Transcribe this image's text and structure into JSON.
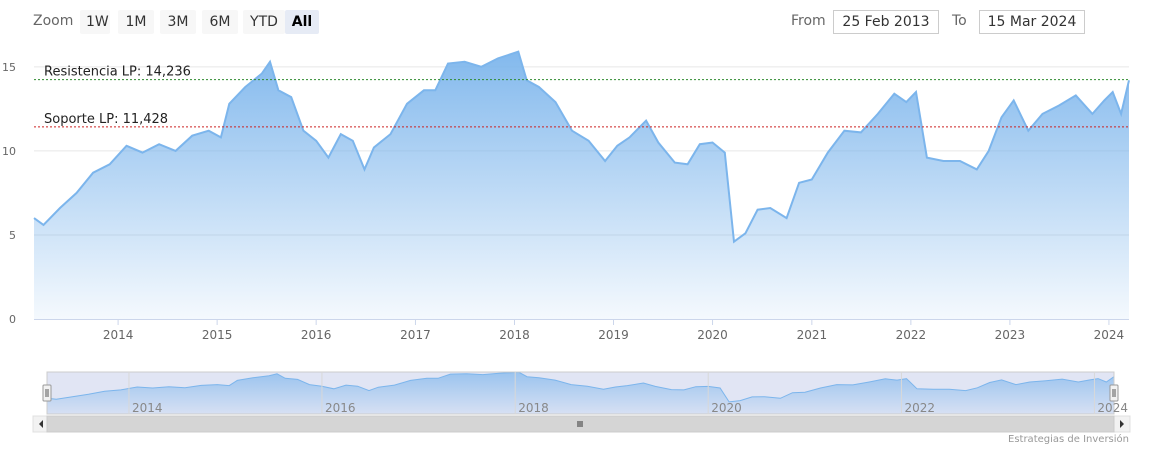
{
  "toolbar": {
    "zoom_label": "Zoom",
    "buttons": [
      "1W",
      "1M",
      "3M",
      "6M",
      "YTD",
      "All"
    ],
    "active": "All",
    "from_label": "From",
    "from_value": "25 Feb 2013",
    "to_label": "To",
    "to_value": "15 Mar 2024"
  },
  "colors": {
    "line": "#7cb5ec",
    "resistance": "#2e8b2e",
    "support": "#cc2222",
    "navigator_mask": "#cdd4ec"
  },
  "credits": "Estrategias de Inversión",
  "chart_data": {
    "type": "area",
    "ylim": [
      0,
      16
    ],
    "yticks": [
      "0",
      "5",
      "10",
      "15"
    ],
    "xlabels": [
      "2014",
      "2015",
      "2016",
      "2017",
      "2018",
      "2019",
      "2020",
      "2021",
      "2022",
      "2023",
      "2024"
    ],
    "navigator_labels": [
      "2014",
      "2016",
      "2018",
      "2020",
      "2022",
      "2024"
    ],
    "x_range": [
      "2013-02-25",
      "2024-03-15"
    ],
    "series": [
      {
        "values": [
          [
            "2013-02-25",
            6.0
          ],
          [
            "2013-04-01",
            5.6
          ],
          [
            "2013-06-01",
            6.6
          ],
          [
            "2013-08-01",
            7.5
          ],
          [
            "2013-10-01",
            8.7
          ],
          [
            "2013-12-01",
            9.2
          ],
          [
            "2014-02-01",
            10.3
          ],
          [
            "2014-04-01",
            9.9
          ],
          [
            "2014-06-01",
            10.4
          ],
          [
            "2014-08-01",
            10.0
          ],
          [
            "2014-10-01",
            10.9
          ],
          [
            "2014-12-01",
            11.2
          ],
          [
            "2015-01-15",
            10.8
          ],
          [
            "2015-02-15",
            12.8
          ],
          [
            "2015-04-15",
            13.8
          ],
          [
            "2015-06-15",
            14.6
          ],
          [
            "2015-07-15",
            15.3
          ],
          [
            "2015-08-15",
            13.6
          ],
          [
            "2015-10-01",
            13.2
          ],
          [
            "2015-11-15",
            11.2
          ],
          [
            "2016-01-01",
            10.6
          ],
          [
            "2016-02-15",
            9.6
          ],
          [
            "2016-04-01",
            11.0
          ],
          [
            "2016-05-15",
            10.6
          ],
          [
            "2016-06-27",
            8.9
          ],
          [
            "2016-08-01",
            10.2
          ],
          [
            "2016-10-01",
            11.0
          ],
          [
            "2016-12-01",
            12.8
          ],
          [
            "2017-02-01",
            13.6
          ],
          [
            "2017-03-15",
            13.6
          ],
          [
            "2017-05-01",
            15.2
          ],
          [
            "2017-07-01",
            15.3
          ],
          [
            "2017-09-01",
            15.0
          ],
          [
            "2017-11-01",
            15.5
          ],
          [
            "2018-01-15",
            15.9
          ],
          [
            "2018-02-15",
            14.2
          ],
          [
            "2018-04-01",
            13.8
          ],
          [
            "2018-06-01",
            12.9
          ],
          [
            "2018-08-01",
            11.2
          ],
          [
            "2018-10-01",
            10.6
          ],
          [
            "2018-12-01",
            9.4
          ],
          [
            "2019-01-15",
            10.3
          ],
          [
            "2019-03-01",
            10.8
          ],
          [
            "2019-05-01",
            11.8
          ],
          [
            "2019-06-15",
            10.5
          ],
          [
            "2019-08-15",
            9.3
          ],
          [
            "2019-10-01",
            9.2
          ],
          [
            "2019-11-15",
            10.4
          ],
          [
            "2020-01-01",
            10.5
          ],
          [
            "2020-02-15",
            9.9
          ],
          [
            "2020-03-20",
            4.6
          ],
          [
            "2020-05-01",
            5.1
          ],
          [
            "2020-06-15",
            6.5
          ],
          [
            "2020-08-01",
            6.6
          ],
          [
            "2020-09-30",
            6.0
          ],
          [
            "2020-11-15",
            8.1
          ],
          [
            "2021-01-01",
            8.3
          ],
          [
            "2021-03-01",
            9.9
          ],
          [
            "2021-05-01",
            11.2
          ],
          [
            "2021-07-01",
            11.1
          ],
          [
            "2021-09-01",
            12.2
          ],
          [
            "2021-11-01",
            13.4
          ],
          [
            "2021-12-15",
            12.9
          ],
          [
            "2022-01-20",
            13.5
          ],
          [
            "2022-03-01",
            9.6
          ],
          [
            "2022-05-01",
            9.4
          ],
          [
            "2022-07-01",
            9.4
          ],
          [
            "2022-09-01",
            8.9
          ],
          [
            "2022-10-15",
            10.0
          ],
          [
            "2022-12-01",
            12.0
          ],
          [
            "2023-01-15",
            13.0
          ],
          [
            "2023-03-10",
            11.2
          ],
          [
            "2023-05-01",
            12.2
          ],
          [
            "2023-07-01",
            12.7
          ],
          [
            "2023-09-01",
            13.3
          ],
          [
            "2023-11-01",
            12.2
          ],
          [
            "2023-12-15",
            13.0
          ],
          [
            "2024-01-15",
            13.5
          ],
          [
            "2024-02-15",
            12.2
          ],
          [
            "2024-03-15",
            14.2
          ]
        ]
      }
    ],
    "annotations": [
      {
        "label": "Resistencia LP: 14,236",
        "value": 14.236,
        "color_key": "resistance"
      },
      {
        "label": "Soporte LP: 11,428",
        "value": 11.428,
        "color_key": "support"
      }
    ]
  }
}
